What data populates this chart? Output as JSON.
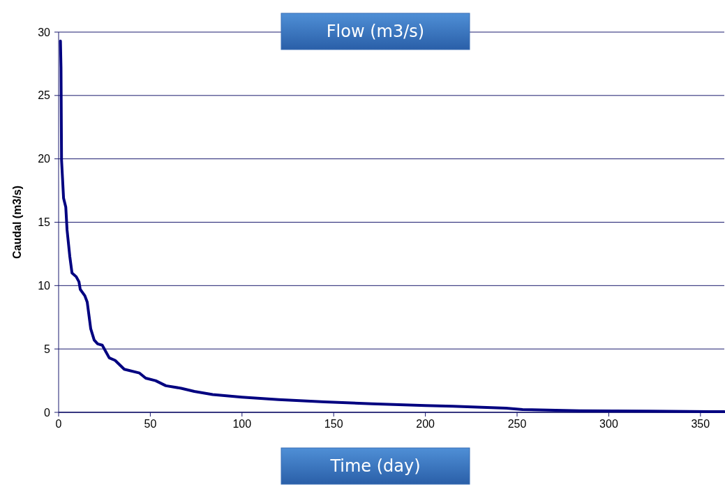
{
  "chart_data": {
    "type": "line",
    "title": "Flow (m3/s)",
    "xlabel": "Time (day)",
    "ylabel": "Caudal (m3/s)",
    "x": [
      1,
      1.3,
      1.6,
      2.7,
      3.9,
      4.6,
      6.1,
      7.3,
      9.6,
      11.1,
      11.8,
      14.3,
      15.6,
      17.5,
      19.4,
      21.3,
      23.8,
      27.6,
      30.8,
      35.8,
      44.1,
      47.5,
      52.9,
      58.5,
      66.8,
      74,
      84,
      100,
      120,
      145,
      171,
      200,
      215,
      244,
      253,
      284,
      322,
      363
    ],
    "series": [
      {
        "color": "#000080",
        "values": [
          29.3,
          27.2,
          19.9,
          16.9,
          16.2,
          14.4,
          12.3,
          11.0,
          10.7,
          10.3,
          9.7,
          9.2,
          8.7,
          6.6,
          5.7,
          5.4,
          5.3,
          4.3,
          4.1,
          3.4,
          3.1,
          2.7,
          2.5,
          2.1,
          1.9,
          1.65,
          1.4,
          1.2,
          1.0,
          0.83,
          0.68,
          0.53,
          0.48,
          0.33,
          0.22,
          0.13,
          0.09,
          0.05
        ]
      }
    ],
    "xlim": [
      0,
      363
    ],
    "ylim": [
      0,
      30
    ],
    "xticks": [
      0,
      50,
      100,
      150,
      200,
      250,
      300,
      350
    ],
    "yticks": [
      0,
      5,
      10,
      15,
      20,
      25,
      30
    ],
    "grid": "y",
    "marker": "none",
    "line_style": "solid"
  }
}
